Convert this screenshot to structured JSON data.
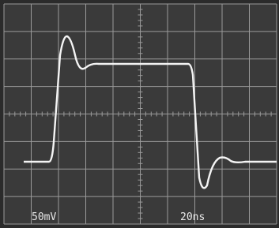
{
  "labels": {
    "volts_per_div": "50mV",
    "time_per_div": "20ns"
  }
}
